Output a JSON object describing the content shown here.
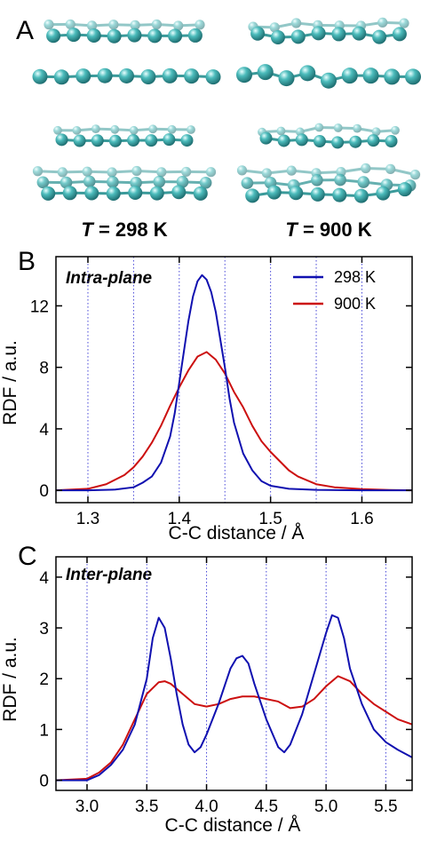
{
  "panel_a": {
    "label": "A",
    "temperatures": [
      {
        "italic": "T",
        "rest": " = 298 K"
      },
      {
        "italic": "T",
        "rest": " = 900 K"
      }
    ],
    "atom_color": "#4cbcbc",
    "bond_color": "#3a9a9a"
  },
  "chart_data": [
    {
      "type": "line",
      "panel_label": "B",
      "title": "Intra-plane",
      "xlabel": "C-C distance / Å",
      "ylabel": "RDF / a.u.",
      "xlim": [
        1.265,
        1.655
      ],
      "ylim": [
        -0.8,
        15.2
      ],
      "xticks": [
        "1.3",
        "1.4",
        "1.5",
        "1.6"
      ],
      "yticks": [
        "0",
        "4",
        "8",
        "12"
      ],
      "xtick_values": [
        1.3,
        1.4,
        1.5,
        1.6
      ],
      "ytick_values": [
        0,
        4,
        8,
        12
      ],
      "vlines": [
        1.3,
        1.35,
        1.4,
        1.45,
        1.5,
        1.55,
        1.6
      ],
      "grid": false,
      "legend": "top-right",
      "series": [
        {
          "name": "298 K",
          "color": "#1010b0",
          "x": [
            1.265,
            1.3,
            1.33,
            1.35,
            1.36,
            1.37,
            1.38,
            1.39,
            1.395,
            1.4,
            1.405,
            1.41,
            1.415,
            1.42,
            1.425,
            1.43,
            1.435,
            1.44,
            1.445,
            1.45,
            1.455,
            1.46,
            1.47,
            1.48,
            1.49,
            1.5,
            1.52,
            1.55,
            1.6,
            1.655
          ],
          "y": [
            0,
            0,
            0.05,
            0.2,
            0.5,
            0.9,
            1.8,
            3.5,
            5.0,
            7.0,
            9.0,
            11.0,
            12.6,
            13.6,
            14.0,
            13.7,
            12.9,
            11.6,
            9.8,
            8.0,
            6.0,
            4.4,
            2.4,
            1.3,
            0.6,
            0.3,
            0.1,
            0.03,
            0,
            0
          ]
        },
        {
          "name": "900 K",
          "color": "#cc1010",
          "x": [
            1.265,
            1.3,
            1.32,
            1.34,
            1.35,
            1.36,
            1.37,
            1.38,
            1.39,
            1.4,
            1.41,
            1.42,
            1.43,
            1.44,
            1.45,
            1.46,
            1.47,
            1.48,
            1.49,
            1.5,
            1.51,
            1.52,
            1.53,
            1.55,
            1.57,
            1.6,
            1.63,
            1.655
          ],
          "y": [
            0,
            0.1,
            0.4,
            1.0,
            1.5,
            2.2,
            3.1,
            4.2,
            5.5,
            6.7,
            7.8,
            8.7,
            9.0,
            8.5,
            7.6,
            6.4,
            5.4,
            4.2,
            3.2,
            2.5,
            1.9,
            1.3,
            0.9,
            0.4,
            0.2,
            0.08,
            0.02,
            0
          ]
        }
      ]
    },
    {
      "type": "line",
      "panel_label": "C",
      "title": "Inter-plane",
      "xlabel": "C-C distance / Å",
      "ylabel": "RDF / a.u.",
      "xlim": [
        2.74,
        5.72
      ],
      "ylim": [
        -0.2,
        4.4
      ],
      "xticks": [
        "3.0",
        "3.5",
        "4.0",
        "4.5",
        "5.0",
        "5.5"
      ],
      "yticks": [
        "0",
        "1",
        "2",
        "3",
        "4"
      ],
      "xtick_values": [
        3.0,
        3.5,
        4.0,
        4.5,
        5.0,
        5.5
      ],
      "ytick_values": [
        0,
        1,
        2,
        3,
        4
      ],
      "vlines": [
        3.0,
        3.5,
        4.0,
        4.5,
        5.0,
        5.5
      ],
      "grid": false,
      "legend": "none",
      "series": [
        {
          "name": "298 K",
          "color": "#1010b0",
          "x": [
            2.74,
            3.0,
            3.1,
            3.2,
            3.3,
            3.4,
            3.5,
            3.55,
            3.6,
            3.65,
            3.7,
            3.75,
            3.8,
            3.85,
            3.9,
            3.95,
            4.0,
            4.1,
            4.2,
            4.25,
            4.3,
            4.35,
            4.4,
            4.5,
            4.6,
            4.65,
            4.7,
            4.8,
            4.9,
            5.0,
            5.05,
            5.1,
            5.15,
            5.2,
            5.3,
            5.4,
            5.5,
            5.6,
            5.72
          ],
          "y": [
            0,
            0,
            0.1,
            0.3,
            0.6,
            1.1,
            2.0,
            2.8,
            3.2,
            3.0,
            2.4,
            1.7,
            1.1,
            0.7,
            0.55,
            0.65,
            0.9,
            1.5,
            2.2,
            2.4,
            2.45,
            2.3,
            1.9,
            1.2,
            0.65,
            0.55,
            0.7,
            1.3,
            2.1,
            2.9,
            3.25,
            3.2,
            2.8,
            2.2,
            1.5,
            1.0,
            0.75,
            0.6,
            0.45
          ]
        },
        {
          "name": "900 K",
          "color": "#cc1010",
          "x": [
            2.74,
            3.0,
            3.1,
            3.2,
            3.3,
            3.4,
            3.5,
            3.6,
            3.65,
            3.7,
            3.8,
            3.9,
            4.0,
            4.1,
            4.2,
            4.3,
            4.4,
            4.5,
            4.6,
            4.7,
            4.8,
            4.9,
            5.0,
            5.1,
            5.2,
            5.3,
            5.4,
            5.5,
            5.6,
            5.72
          ],
          "y": [
            0,
            0.03,
            0.15,
            0.35,
            0.7,
            1.2,
            1.7,
            1.93,
            1.95,
            1.9,
            1.7,
            1.5,
            1.45,
            1.5,
            1.6,
            1.65,
            1.65,
            1.6,
            1.55,
            1.42,
            1.45,
            1.6,
            1.85,
            2.05,
            1.95,
            1.7,
            1.5,
            1.35,
            1.2,
            1.1
          ]
        }
      ]
    }
  ]
}
